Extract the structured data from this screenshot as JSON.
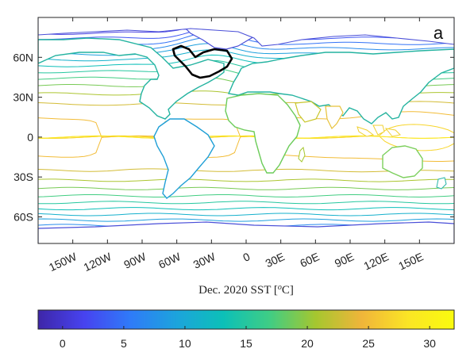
{
  "chart_data": {
    "type": "heatmap",
    "panel_label": "a",
    "xlabel": "Dec. 2020 SST [",
    "xlabel_sup": "o",
    "xlabel_unit": "C]",
    "lon_range": [
      -180,
      180
    ],
    "lat_range": [
      -80,
      90
    ],
    "lon_ticks": [
      {
        "value": -150,
        "label": "150W"
      },
      {
        "value": -120,
        "label": "120W"
      },
      {
        "value": -90,
        "label": "90W"
      },
      {
        "value": -60,
        "label": "60W"
      },
      {
        "value": -30,
        "label": "30W"
      },
      {
        "value": 0,
        "label": "0"
      },
      {
        "value": 30,
        "label": "30E"
      },
      {
        "value": 60,
        "label": "60E"
      },
      {
        "value": 90,
        "label": "90E"
      },
      {
        "value": 120,
        "label": "120E"
      },
      {
        "value": 150,
        "label": "150E"
      }
    ],
    "lat_ticks": [
      {
        "value": 60,
        "label": "60N"
      },
      {
        "value": 30,
        "label": "30N"
      },
      {
        "value": 0,
        "label": "0"
      },
      {
        "value": -30,
        "label": "30S"
      },
      {
        "value": -60,
        "label": "60S"
      }
    ],
    "colorbar": {
      "range": [
        -2,
        32
      ],
      "ticks": [
        0,
        5,
        10,
        15,
        20,
        25,
        30
      ],
      "colormap": "parula",
      "colors": [
        "#3e26a8",
        "#4743f0",
        "#2f7bf8",
        "#1ca4dc",
        "#0cc0b8",
        "#3fcd85",
        "#a5c72f",
        "#f0b53a",
        "#fbe525",
        "#f9fb0e"
      ]
    },
    "contour_levels": [
      -1,
      1,
      3,
      5,
      7,
      9,
      11,
      13,
      15,
      17,
      19,
      21,
      23,
      25,
      27,
      28.5
    ],
    "highlight_region": {
      "name": "",
      "color": "#000000",
      "lon_range": [
        -55,
        -20
      ],
      "lat_range": [
        47,
        66
      ]
    }
  }
}
